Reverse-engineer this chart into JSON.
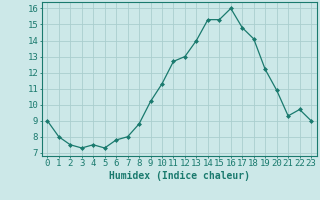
{
  "x": [
    0,
    1,
    2,
    3,
    4,
    5,
    6,
    7,
    8,
    9,
    10,
    11,
    12,
    13,
    14,
    15,
    16,
    17,
    18,
    19,
    20,
    21,
    22,
    23
  ],
  "y": [
    9.0,
    8.0,
    7.5,
    7.3,
    7.5,
    7.3,
    7.8,
    8.0,
    8.8,
    10.2,
    11.3,
    12.7,
    13.0,
    14.0,
    15.3,
    15.3,
    16.0,
    14.8,
    14.1,
    12.2,
    10.9,
    9.3,
    9.7,
    9.0
  ],
  "xlabel": "Humidex (Indice chaleur)",
  "line_color": "#1a7a6e",
  "marker_color": "#1a7a6e",
  "bg_color": "#cce8e8",
  "grid_color": "#aacece",
  "axis_color": "#1a7a6e",
  "tick_color": "#1a7a6e",
  "ylim": [
    6.8,
    16.4
  ],
  "yticks": [
    7,
    8,
    9,
    10,
    11,
    12,
    13,
    14,
    15,
    16
  ],
  "xticks": [
    0,
    1,
    2,
    3,
    4,
    5,
    6,
    7,
    8,
    9,
    10,
    11,
    12,
    13,
    14,
    15,
    16,
    17,
    18,
    19,
    20,
    21,
    22,
    23
  ],
  "xlabel_fontsize": 7,
  "tick_fontsize": 6.5
}
